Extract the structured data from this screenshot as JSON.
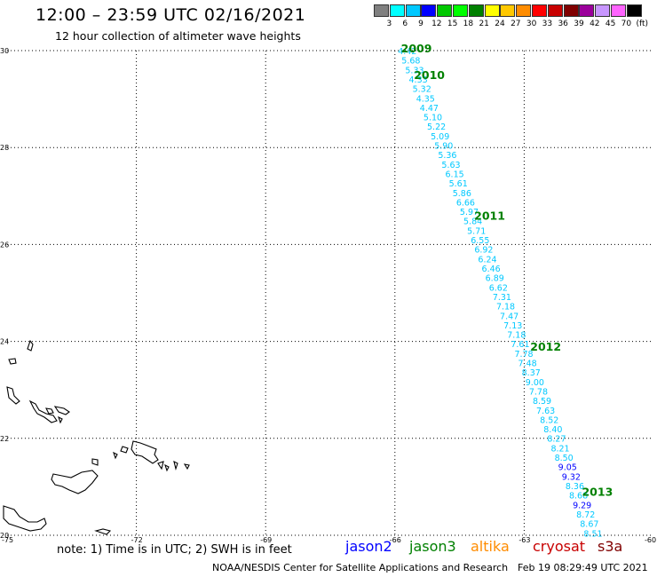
{
  "header": {
    "title": "12:00 – 23:59 UTC 02/16/2021",
    "subtitle": "12 hour collection of altimeter wave heights"
  },
  "legend": {
    "colors": [
      "#808080",
      "#00ffff",
      "#00c8ff",
      "#0000ff",
      "#00c800",
      "#00ff00",
      "#008000",
      "#ffff00",
      "#ffc800",
      "#ff8c00",
      "#ff0000",
      "#c80000",
      "#800000",
      "#9b009b",
      "#c896ff",
      "#ff64ff",
      "#000000"
    ],
    "labels": [
      "3",
      "6",
      "9",
      "12",
      "15",
      "18",
      "21",
      "24",
      "27",
      "30",
      "33",
      "36",
      "39",
      "42",
      "45",
      "70"
    ],
    "unit": "(ft)"
  },
  "axes": {
    "lat_labels": [
      "30",
      "28",
      "26",
      "24",
      "22",
      "20"
    ],
    "lon_labels": [
      "-75",
      "-72",
      "-69",
      "-66",
      "-63",
      "-60"
    ]
  },
  "track": {
    "color_light": "#00c8ff",
    "color_dark": "#0000ff",
    "times": [
      {
        "label": "2009",
        "lon": -65.9,
        "lat": 30.0
      },
      {
        "label": "2010",
        "lon": -65.6,
        "lat": 29.45
      },
      {
        "label": "2011",
        "lon": -64.2,
        "lat": 26.55
      },
      {
        "label": "2012",
        "lon": -62.9,
        "lat": 23.85
      },
      {
        "label": "2013",
        "lon": -61.7,
        "lat": 20.85
      }
    ],
    "values": [
      "4.42",
      "5.68",
      "5.33",
      "4.33",
      "5.32",
      "4.35",
      "4.47",
      "5.10",
      "5.22",
      "5.09",
      "5.90",
      "5.36",
      "5.63",
      "6.15",
      "5.61",
      "5.86",
      "6.66",
      "5.97",
      "5.84",
      "5.71",
      "6.55",
      "6.92",
      "6.24",
      "6.46",
      "6.89",
      "6.62",
      "7.31",
      "7.18",
      "7.47",
      "7.13",
      "7.18",
      "7.61",
      "7.78",
      "7.48",
      "8.37",
      "9.00",
      "7.78",
      "8.59",
      "7.63",
      "8.52",
      "8.40",
      "8.27",
      "8.21",
      "8.50",
      "9.05",
      "9.32",
      "8.36",
      "8.68",
      "9.29",
      "8.72",
      "8.67",
      "8.51"
    ],
    "dark_values": [
      "9.05",
      "9.32",
      "9.29"
    ]
  },
  "footer": {
    "note": "note: 1) Time is in UTC; 2) SWH is in feet",
    "satellites": [
      {
        "name": "jason2",
        "color": "#0000ff"
      },
      {
        "name": "jason3",
        "color": "#008000"
      },
      {
        "name": "altika",
        "color": "#ff8c00"
      },
      {
        "name": "cryosat",
        "color": "#c80000"
      },
      {
        "name": "s3a",
        "color": "#800000"
      }
    ],
    "credit": "NOAA/NESDIS Center for Satellite Applications and Research",
    "timestamp": "Feb 19 08:29:49 UTC 2021"
  }
}
